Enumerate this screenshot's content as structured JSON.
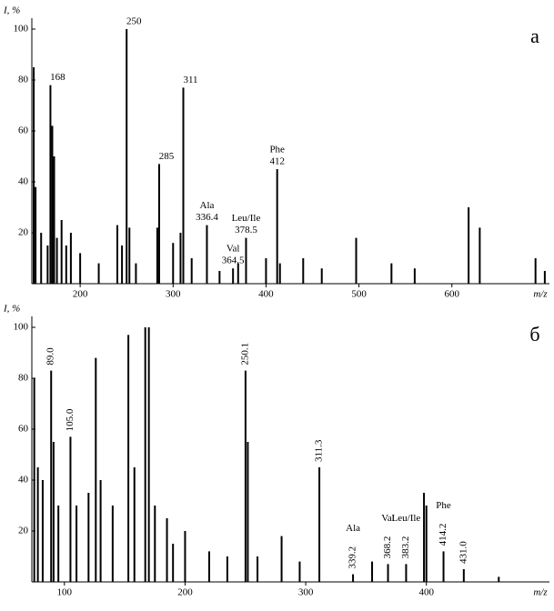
{
  "chart_data": [
    {
      "type": "bar",
      "panel": "а",
      "y_label": "I, %",
      "x_label": "m/z",
      "color": "#000000",
      "x": [
        150,
        152,
        158,
        165,
        168,
        170,
        172,
        175,
        180,
        185,
        190,
        200,
        220,
        240,
        245,
        250,
        253,
        260,
        283,
        285,
        300,
        308,
        311,
        320,
        336.4,
        350,
        364.5,
        370,
        378.5,
        400,
        412,
        415,
        440,
        460,
        497,
        535,
        560,
        618,
        630,
        690,
        700
      ],
      "values": [
        85,
        38,
        20,
        15,
        78,
        62,
        50,
        18,
        25,
        15,
        20,
        12,
        8,
        23,
        15,
        100,
        22,
        8,
        22,
        47,
        16,
        20,
        77,
        10,
        23,
        5,
        6,
        8,
        18,
        10,
        45,
        8,
        10,
        6,
        18,
        8,
        6,
        30,
        22,
        10,
        5
      ],
      "xlim": [
        148,
        705
      ],
      "ylim": [
        0,
        100
      ],
      "xticks": [
        200,
        300,
        400,
        500,
        600
      ],
      "yticks": [
        20,
        40,
        60,
        80,
        100
      ],
      "annotations": [
        {
          "mz": 168
        },
        {
          "mz": 250
        },
        {
          "mz": 285
        },
        {
          "mz": 311
        },
        {
          "mz": 336.4,
          "name": "Ala"
        },
        {
          "mz": 364.5,
          "name": "Val"
        },
        {
          "mz": 378.5,
          "name": "Leu/Ile"
        },
        {
          "mz": 412,
          "name": "Phe"
        }
      ]
    },
    {
      "type": "bar",
      "panel": "б",
      "y_label": "I, %",
      "x_label": "m/z",
      "color": "#000000",
      "x": [
        75,
        78,
        82,
        89,
        91,
        95,
        105,
        110,
        120,
        126,
        130,
        140,
        153,
        158,
        167,
        170,
        175,
        185,
        190,
        200,
        220,
        235,
        250.1,
        252,
        260,
        280,
        295,
        311.3,
        339.2,
        355,
        368.2,
        383.2,
        398,
        400,
        414.2,
        431,
        460
      ],
      "values": [
        80,
        45,
        40,
        83,
        55,
        30,
        57,
        30,
        35,
        88,
        40,
        30,
        97,
        45,
        100,
        100,
        30,
        25,
        15,
        20,
        12,
        10,
        83,
        55,
        10,
        18,
        8,
        45,
        3,
        8,
        7,
        7,
        35,
        30,
        12,
        5,
        2
      ],
      "xlim": [
        73,
        502
      ],
      "ylim": [
        0,
        100
      ],
      "xticks": [
        100,
        200,
        300,
        400
      ],
      "yticks": [
        20,
        40,
        60,
        80,
        100
      ],
      "annotations": [
        {
          "mz": {
            "value": 89,
            "label": "89.0"
          }
        },
        {
          "mz": {
            "value": 105,
            "label": "105.0"
          }
        },
        {
          "mz": 250.1
        },
        {
          "mz": 311.3
        },
        {
          "mz": 339.2,
          "name": "Ala"
        },
        {
          "mz": 368.2,
          "name": "Val"
        },
        {
          "mz": 383.2,
          "name": "Leu/Ile"
        },
        {
          "mz": 414.2,
          "name": "Phe"
        },
        {
          "mz": {
            "value": 431,
            "label": "431.0"
          }
        }
      ]
    }
  ]
}
